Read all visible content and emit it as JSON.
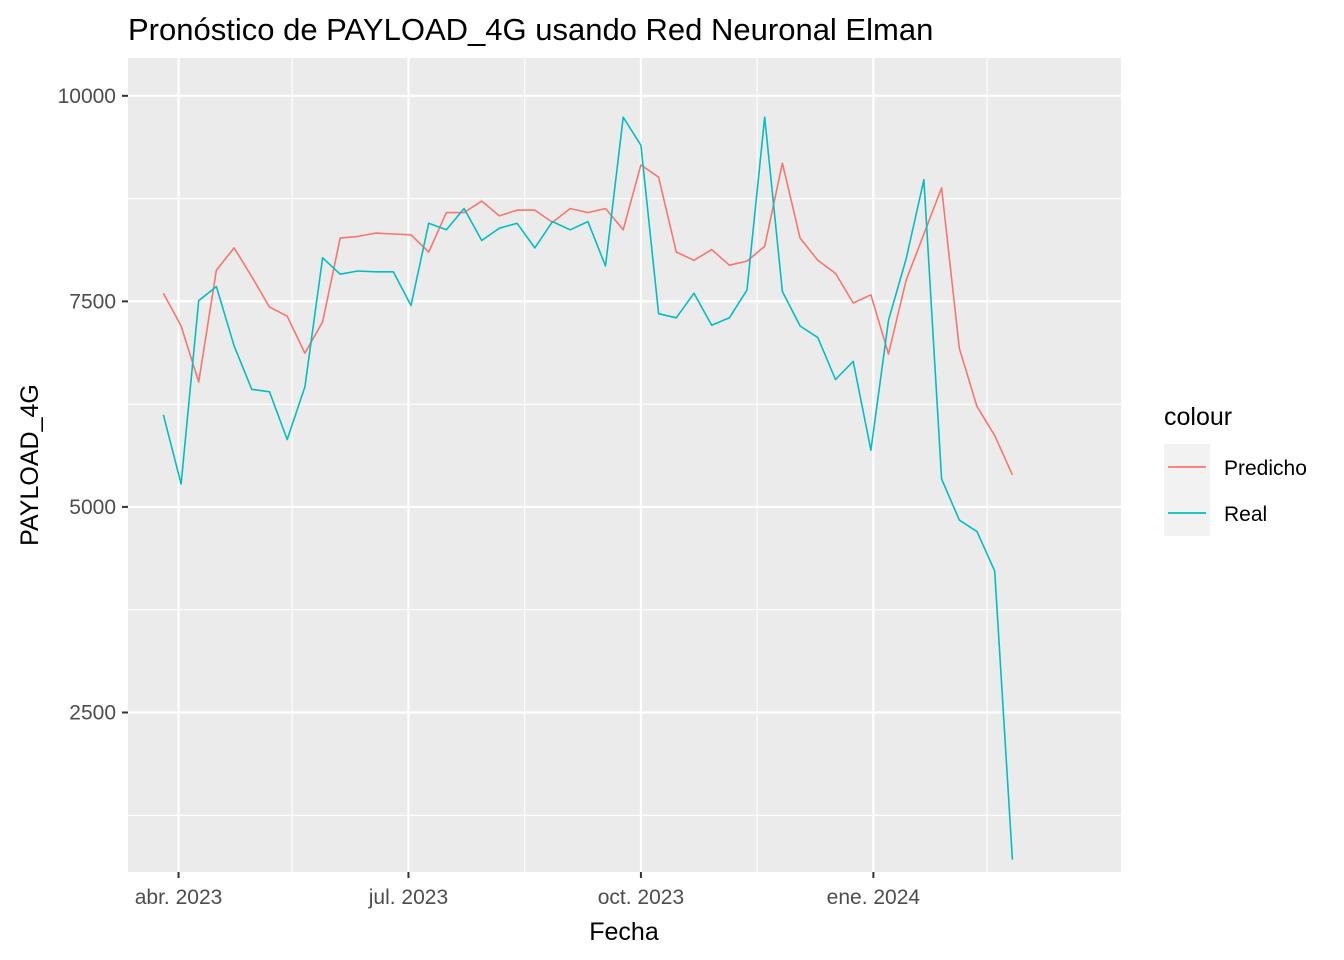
{
  "chart_data": {
    "type": "line",
    "title": "Pronóstico de PAYLOAD_4G usando Red Neuronal Elman",
    "xlabel": "Fecha",
    "ylabel": "PAYLOAD_4G",
    "x_ticks": [
      {
        "label": "abr. 2023",
        "date": "2023-04-01"
      },
      {
        "label": "jul. 2023",
        "date": "2023-07-01"
      },
      {
        "label": "oct. 2023",
        "date": "2023-10-01"
      },
      {
        "label": "ene. 2024",
        "date": "2024-01-01"
      }
    ],
    "x_minor_dates": [
      "2023-05-16",
      "2023-08-16",
      "2023-11-16",
      "2024-02-15"
    ],
    "y_ticks": [
      2500,
      5000,
      7500,
      10000
    ],
    "y_minor_ticks": [
      1250,
      3750,
      6250,
      8750
    ],
    "xlim": [
      "2023-03-12",
      "2024-04-08"
    ],
    "ylim": [
      560,
      10460
    ],
    "grid": true,
    "legend": {
      "title": "colour",
      "position": "right"
    },
    "series": [
      {
        "name": "Predicho",
        "color": "#F8766D",
        "x": [
          "2023-03-26",
          "2023-04-02",
          "2023-04-09",
          "2023-04-16",
          "2023-04-23",
          "2023-04-30",
          "2023-05-07",
          "2023-05-14",
          "2023-05-21",
          "2023-05-28",
          "2023-06-04",
          "2023-06-11",
          "2023-06-18",
          "2023-06-25",
          "2023-07-02",
          "2023-07-09",
          "2023-07-16",
          "2023-07-23",
          "2023-07-30",
          "2023-08-06",
          "2023-08-13",
          "2023-08-20",
          "2023-08-27",
          "2023-09-03",
          "2023-09-10",
          "2023-09-17",
          "2023-09-24",
          "2023-10-01",
          "2023-10-08",
          "2023-10-15",
          "2023-10-22",
          "2023-10-29",
          "2023-11-05",
          "2023-11-12",
          "2023-11-19",
          "2023-11-26",
          "2023-12-03",
          "2023-12-10",
          "2023-12-17",
          "2023-12-24",
          "2023-12-31",
          "2024-01-07",
          "2024-01-14",
          "2024-01-21",
          "2024-01-28",
          "2024-02-04",
          "2024-02-11",
          "2024-02-18",
          "2024-02-25"
        ],
        "y": [
          7600,
          7200,
          6520,
          7880,
          8150,
          7800,
          7430,
          7320,
          6870,
          7250,
          8270,
          8290,
          8330,
          8320,
          8310,
          8100,
          8580,
          8580,
          8720,
          8540,
          8610,
          8610,
          8460,
          8630,
          8580,
          8630,
          8370,
          9160,
          9010,
          8100,
          8000,
          8130,
          7940,
          7990,
          8170,
          9180,
          8270,
          8000,
          7840,
          7480,
          7580,
          6860,
          7760,
          8320,
          8880,
          6930,
          6220,
          5870,
          5390
        ]
      },
      {
        "name": "Real",
        "color": "#00BFC4",
        "x": [
          "2023-03-26",
          "2023-04-02",
          "2023-04-09",
          "2023-04-16",
          "2023-04-23",
          "2023-04-30",
          "2023-05-07",
          "2023-05-14",
          "2023-05-21",
          "2023-05-28",
          "2023-06-04",
          "2023-06-11",
          "2023-06-18",
          "2023-06-25",
          "2023-07-02",
          "2023-07-09",
          "2023-07-16",
          "2023-07-23",
          "2023-07-30",
          "2023-08-06",
          "2023-08-13",
          "2023-08-20",
          "2023-08-27",
          "2023-09-03",
          "2023-09-10",
          "2023-09-17",
          "2023-09-24",
          "2023-10-01",
          "2023-10-08",
          "2023-10-15",
          "2023-10-22",
          "2023-10-29",
          "2023-11-05",
          "2023-11-12",
          "2023-11-19",
          "2023-11-26",
          "2023-12-03",
          "2023-12-10",
          "2023-12-17",
          "2023-12-24",
          "2023-12-31",
          "2024-01-07",
          "2024-01-14",
          "2024-01-21",
          "2024-01-28",
          "2024-02-04",
          "2024-02-11",
          "2024-02-18",
          "2024-02-25"
        ],
        "y": [
          6120,
          5280,
          7510,
          7680,
          6960,
          6430,
          6400,
          5820,
          6460,
          8030,
          7830,
          7870,
          7860,
          7860,
          7450,
          8450,
          8370,
          8630,
          8240,
          8390,
          8450,
          8150,
          8470,
          8370,
          8470,
          7930,
          9740,
          9400,
          7350,
          7300,
          7600,
          7210,
          7300,
          7640,
          9740,
          7620,
          7200,
          7060,
          6550,
          6770,
          5690,
          7270,
          8020,
          8980,
          5340,
          4840,
          4700,
          4220,
          710
        ]
      }
    ]
  }
}
